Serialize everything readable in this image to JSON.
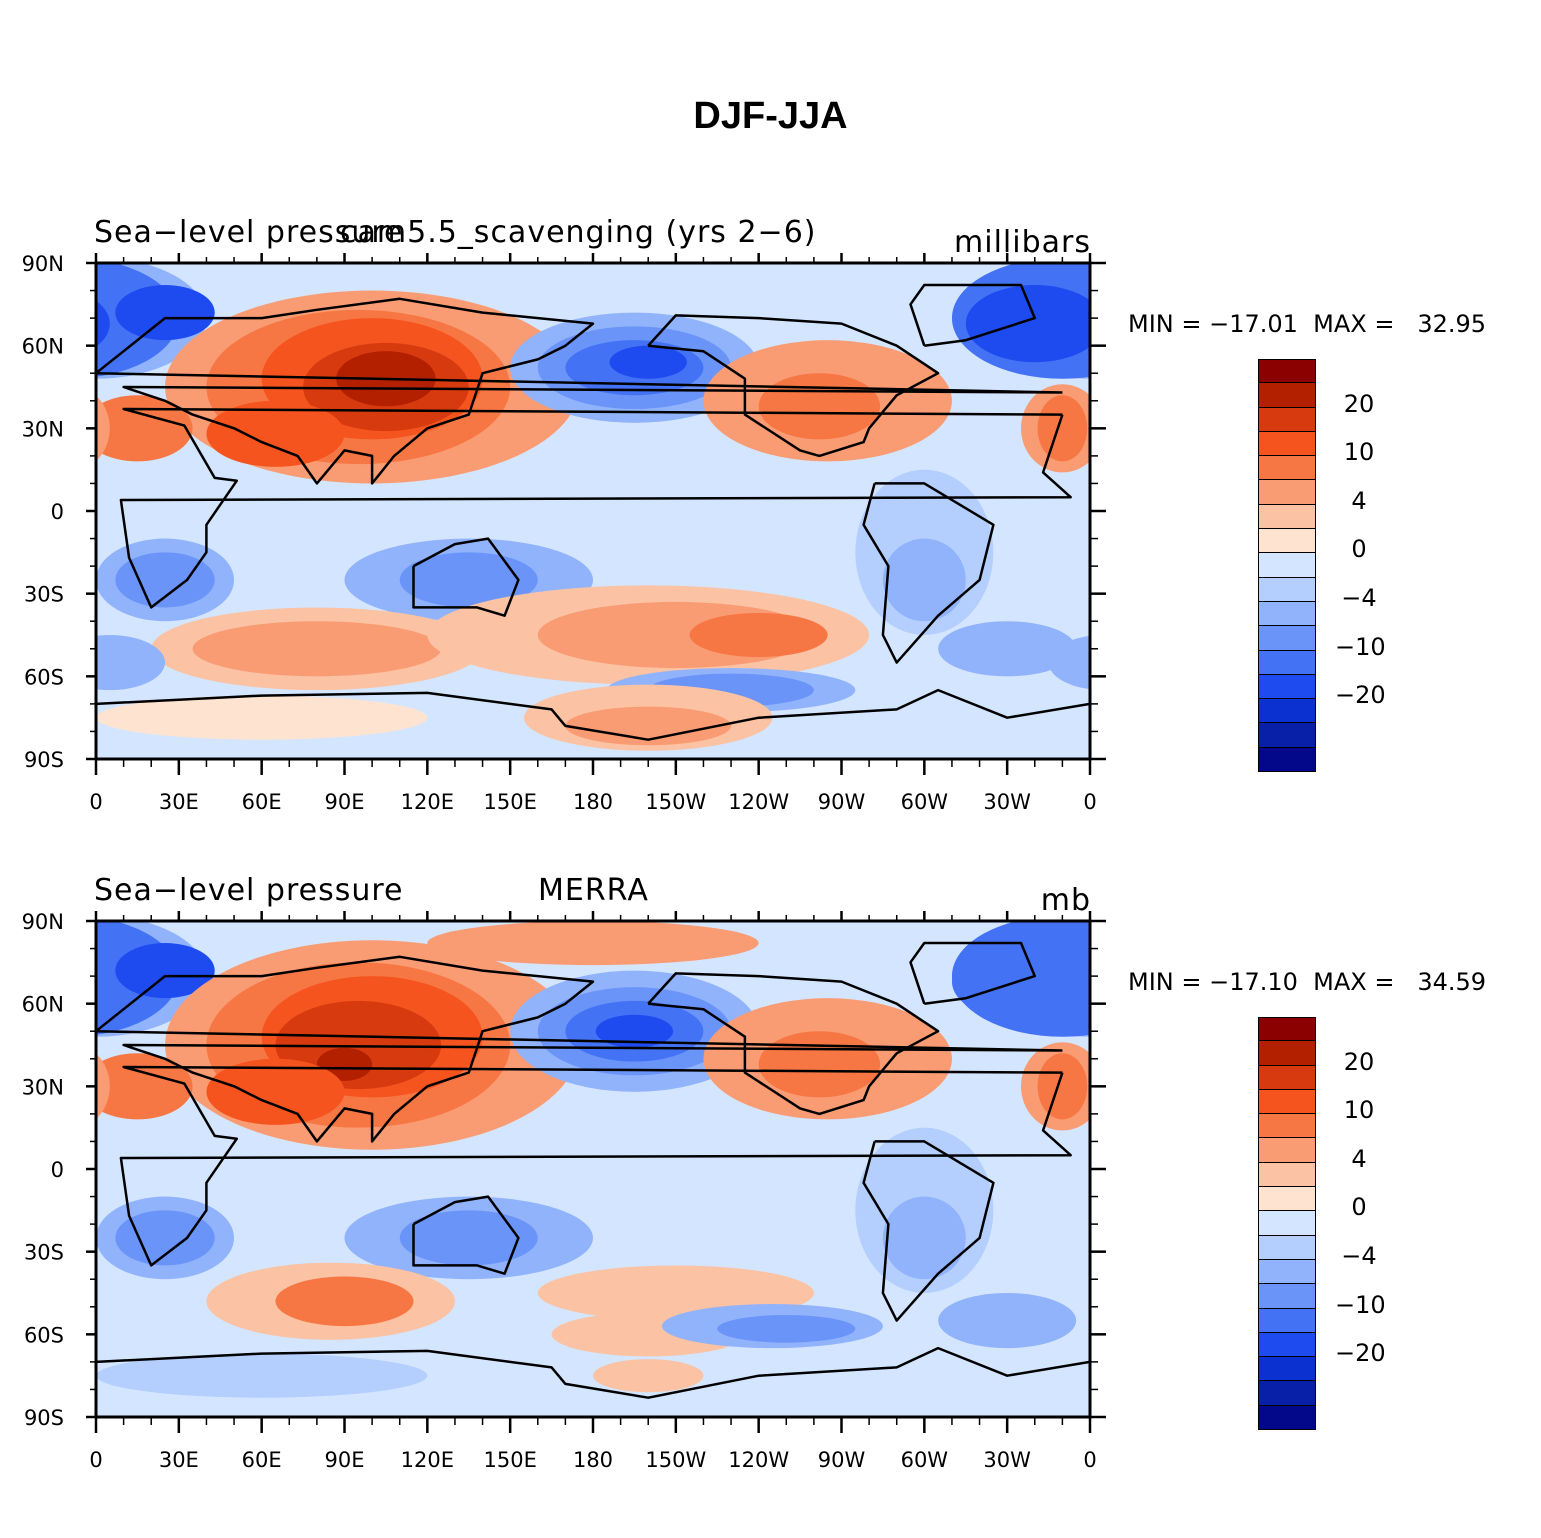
{
  "title": "DJF-JJA",
  "panels": [
    {
      "left_label": "Sea−level pressure",
      "center_label": "cam5.5_scavenging (yrs 2−6)",
      "right_label": "millibars",
      "minmax": "MIN = −17.01  MAX =   32.95",
      "variant": "model"
    },
    {
      "left_label": "Sea−level pressure",
      "center_label": "MERRA",
      "right_label": "mb",
      "minmax": "MIN = −17.10  MAX =   34.59",
      "variant": "obs"
    }
  ],
  "y_ticks": [
    "90N",
    "60N",
    "30N",
    "0",
    "30S",
    "60S",
    "90S"
  ],
  "x_ticks": [
    "0",
    "30E",
    "60E",
    "90E",
    "120E",
    "150E",
    "180",
    "150W",
    "120W",
    "90W",
    "60W",
    "30W",
    "0"
  ],
  "colorbar": {
    "colors": [
      "#8b0000",
      "#b22000",
      "#d83a10",
      "#f5541f",
      "#f77744",
      "#f99c74",
      "#fbc2a4",
      "#fde3d0",
      "#d4e6ff",
      "#b4cffe",
      "#91b3fc",
      "#6a94f8",
      "#4472f5",
      "#1e4bf0",
      "#0b32d0",
      "#0820a8",
      "#03078a"
    ],
    "labels": [
      "20",
      "10",
      "4",
      "0",
      "−4",
      "−10",
      "−20"
    ]
  }
}
